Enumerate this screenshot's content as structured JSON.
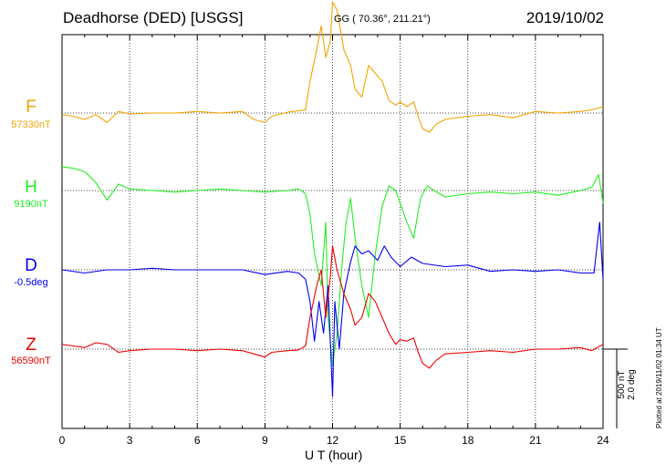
{
  "header": {
    "title": "Deadhorse (DED)  [USGS]",
    "coords": "GG ( 70.36°, 211.21°)",
    "date": "2019/10/02"
  },
  "axis": {
    "xlabel": "U T (hour)",
    "xticks": [
      0,
      3,
      6,
      9,
      12,
      15,
      18,
      21,
      24
    ],
    "xlim": [
      0,
      24
    ]
  },
  "scale_bar": {
    "line1": "500 nT",
    "line2": "2.0 deg"
  },
  "plotted_note": "Plotted at 2019/11/02 01:34 UT",
  "chart_data": {
    "type": "line",
    "grid": true,
    "xlim": [
      0,
      24
    ],
    "units_per_division": "500 nT / 2.0 deg",
    "series": [
      {
        "name": "F",
        "baseline_label": "57330nT",
        "color": "#f2a400",
        "values": [
          [
            0,
            -10
          ],
          [
            0.5,
            -20
          ],
          [
            1,
            -40
          ],
          [
            1.5,
            -10
          ],
          [
            2,
            -60
          ],
          [
            2.5,
            10
          ],
          [
            3,
            -5
          ],
          [
            4,
            0
          ],
          [
            5,
            0
          ],
          [
            6,
            10
          ],
          [
            7,
            0
          ],
          [
            8,
            10
          ],
          [
            8.5,
            -40
          ],
          [
            9,
            -60
          ],
          [
            9.3,
            -20
          ],
          [
            10,
            5
          ],
          [
            10.5,
            15
          ],
          [
            10.8,
            20
          ],
          [
            11,
            200
          ],
          [
            11.3,
            400
          ],
          [
            11.5,
            550
          ],
          [
            11.7,
            350
          ],
          [
            11.9,
            450
          ],
          [
            12,
            700
          ],
          [
            12.2,
            650
          ],
          [
            12.5,
            400
          ],
          [
            12.8,
            300
          ],
          [
            13,
            150
          ],
          [
            13.3,
            100
          ],
          [
            13.6,
            300
          ],
          [
            13.9,
            250
          ],
          [
            14.2,
            200
          ],
          [
            14.5,
            80
          ],
          [
            14.8,
            50
          ],
          [
            15,
            70
          ],
          [
            15.3,
            40
          ],
          [
            15.6,
            70
          ],
          [
            15.8,
            -20
          ],
          [
            16,
            -100
          ],
          [
            16.3,
            -120
          ],
          [
            16.6,
            -70
          ],
          [
            17,
            -40
          ],
          [
            18,
            -20
          ],
          [
            19,
            -10
          ],
          [
            20,
            -30
          ],
          [
            21,
            10
          ],
          [
            22,
            0
          ],
          [
            23,
            10
          ],
          [
            23.5,
            20
          ],
          [
            24,
            40
          ]
        ]
      },
      {
        "name": "H",
        "baseline_label": "9190nT",
        "color": "#22ee22",
        "values": [
          [
            0,
            150
          ],
          [
            0.5,
            140
          ],
          [
            1,
            120
          ],
          [
            1.5,
            50
          ],
          [
            2,
            -60
          ],
          [
            2.5,
            40
          ],
          [
            3,
            10
          ],
          [
            4,
            0
          ],
          [
            5,
            -10
          ],
          [
            6,
            0
          ],
          [
            7,
            10
          ],
          [
            8,
            0
          ],
          [
            9,
            -10
          ],
          [
            10,
            0
          ],
          [
            10.5,
            10
          ],
          [
            10.8,
            -20
          ],
          [
            11,
            -150
          ],
          [
            11.2,
            -400
          ],
          [
            11.5,
            -600
          ],
          [
            11.7,
            -200
          ],
          [
            11.8,
            -800
          ],
          [
            12,
            -1100
          ],
          [
            12.2,
            -900
          ],
          [
            12.4,
            -500
          ],
          [
            12.6,
            -200
          ],
          [
            12.8,
            -50
          ],
          [
            13,
            -300
          ],
          [
            13.3,
            -600
          ],
          [
            13.6,
            -800
          ],
          [
            13.9,
            -400
          ],
          [
            14.2,
            -100
          ],
          [
            14.5,
            30
          ],
          [
            14.8,
            0
          ],
          [
            15,
            -80
          ],
          [
            15.3,
            -200
          ],
          [
            15.6,
            -300
          ],
          [
            15.9,
            -50
          ],
          [
            16.2,
            30
          ],
          [
            16.5,
            0
          ],
          [
            17,
            -40
          ],
          [
            18,
            -20
          ],
          [
            19,
            -10
          ],
          [
            20,
            -20
          ],
          [
            21,
            -10
          ],
          [
            22,
            -30
          ],
          [
            23,
            0
          ],
          [
            23.5,
            20
          ],
          [
            23.8,
            100
          ],
          [
            24,
            -80
          ]
        ]
      },
      {
        "name": "D",
        "baseline_label": "-0.5deg",
        "color": "#0000ee",
        "values": [
          [
            0,
            0
          ],
          [
            1,
            -20
          ],
          [
            2,
            0
          ],
          [
            3,
            0
          ],
          [
            4,
            10
          ],
          [
            5,
            0
          ],
          [
            6,
            0
          ],
          [
            7,
            0
          ],
          [
            8,
            0
          ],
          [
            9,
            -30
          ],
          [
            10,
            -10
          ],
          [
            10.5,
            -20
          ],
          [
            10.8,
            -60
          ],
          [
            11,
            -200
          ],
          [
            11.2,
            -450
          ],
          [
            11.4,
            -200
          ],
          [
            11.6,
            -400
          ],
          [
            11.8,
            -100
          ],
          [
            12,
            -800
          ],
          [
            12.1,
            -200
          ],
          [
            12.3,
            -500
          ],
          [
            12.5,
            -150
          ],
          [
            12.8,
            50
          ],
          [
            13,
            150
          ],
          [
            13.3,
            100
          ],
          [
            13.6,
            120
          ],
          [
            14,
            60
          ],
          [
            14.3,
            150
          ],
          [
            14.6,
            80
          ],
          [
            15,
            20
          ],
          [
            15.5,
            80
          ],
          [
            16,
            40
          ],
          [
            17,
            20
          ],
          [
            18,
            30
          ],
          [
            19,
            -10
          ],
          [
            20,
            0
          ],
          [
            21,
            -10
          ],
          [
            22,
            0
          ],
          [
            23,
            -20
          ],
          [
            23.6,
            -20
          ],
          [
            23.85,
            300
          ],
          [
            24,
            -60
          ]
        ]
      },
      {
        "name": "Z",
        "baseline_label": "56590nT",
        "color": "#ee0000",
        "values": [
          [
            0,
            30
          ],
          [
            0.5,
            20
          ],
          [
            1,
            10
          ],
          [
            1.5,
            40
          ],
          [
            2,
            30
          ],
          [
            2.5,
            -20
          ],
          [
            3,
            -10
          ],
          [
            4,
            0
          ],
          [
            5,
            0
          ],
          [
            6,
            -10
          ],
          [
            7,
            0
          ],
          [
            8,
            -10
          ],
          [
            8.5,
            -30
          ],
          [
            9,
            -50
          ],
          [
            9.3,
            -20
          ],
          [
            10,
            -10
          ],
          [
            10.5,
            -5
          ],
          [
            10.8,
            20
          ],
          [
            11,
            200
          ],
          [
            11.3,
            400
          ],
          [
            11.5,
            500
          ],
          [
            11.7,
            200
          ],
          [
            11.9,
            450
          ],
          [
            12,
            650
          ],
          [
            12.2,
            500
          ],
          [
            12.5,
            350
          ],
          [
            12.8,
            250
          ],
          [
            13,
            150
          ],
          [
            13.3,
            200
          ],
          [
            13.6,
            350
          ],
          [
            13.9,
            300
          ],
          [
            14.2,
            200
          ],
          [
            14.5,
            100
          ],
          [
            14.8,
            30
          ],
          [
            15,
            60
          ],
          [
            15.3,
            50
          ],
          [
            15.6,
            70
          ],
          [
            15.8,
            -20
          ],
          [
            16,
            -90
          ],
          [
            16.3,
            -120
          ],
          [
            16.6,
            -70
          ],
          [
            17,
            -30
          ],
          [
            18,
            -20
          ],
          [
            19,
            -10
          ],
          [
            20,
            -20
          ],
          [
            21,
            0
          ],
          [
            22,
            0
          ],
          [
            23,
            10
          ],
          [
            23.5,
            -10
          ],
          [
            24,
            30
          ]
        ]
      }
    ]
  }
}
